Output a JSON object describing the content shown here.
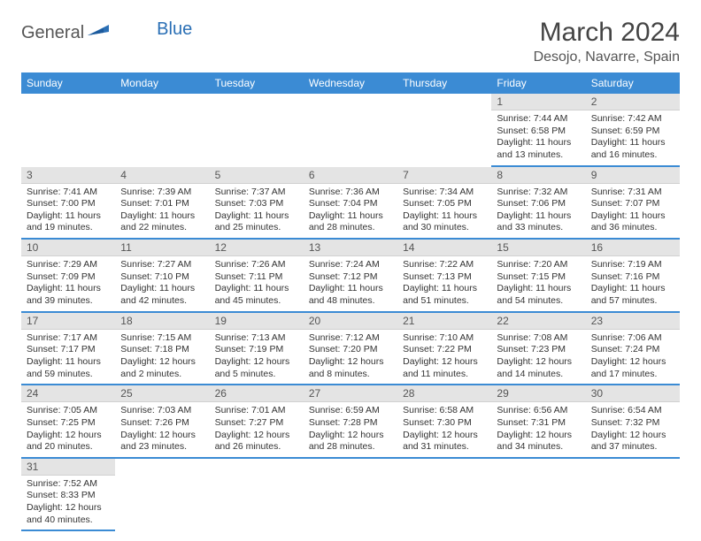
{
  "logo": {
    "general": "General",
    "blue": "Blue"
  },
  "title": "March 2024",
  "location": "Desojo, Navarre, Spain",
  "weekdays": [
    "Sunday",
    "Monday",
    "Tuesday",
    "Wednesday",
    "Thursday",
    "Friday",
    "Saturday"
  ],
  "colors": {
    "header_bg": "#3b8bd4",
    "daynum_bg": "#e4e4e4",
    "row_divider": "#3b8bd4"
  },
  "weeks": [
    [
      null,
      null,
      null,
      null,
      null,
      {
        "n": "1",
        "sunrise": "7:44 AM",
        "sunset": "6:58 PM",
        "daylight": "11 hours and 13 minutes."
      },
      {
        "n": "2",
        "sunrise": "7:42 AM",
        "sunset": "6:59 PM",
        "daylight": "11 hours and 16 minutes."
      }
    ],
    [
      {
        "n": "3",
        "sunrise": "7:41 AM",
        "sunset": "7:00 PM",
        "daylight": "11 hours and 19 minutes."
      },
      {
        "n": "4",
        "sunrise": "7:39 AM",
        "sunset": "7:01 PM",
        "daylight": "11 hours and 22 minutes."
      },
      {
        "n": "5",
        "sunrise": "7:37 AM",
        "sunset": "7:03 PM",
        "daylight": "11 hours and 25 minutes."
      },
      {
        "n": "6",
        "sunrise": "7:36 AM",
        "sunset": "7:04 PM",
        "daylight": "11 hours and 28 minutes."
      },
      {
        "n": "7",
        "sunrise": "7:34 AM",
        "sunset": "7:05 PM",
        "daylight": "11 hours and 30 minutes."
      },
      {
        "n": "8",
        "sunrise": "7:32 AM",
        "sunset": "7:06 PM",
        "daylight": "11 hours and 33 minutes."
      },
      {
        "n": "9",
        "sunrise": "7:31 AM",
        "sunset": "7:07 PM",
        "daylight": "11 hours and 36 minutes."
      }
    ],
    [
      {
        "n": "10",
        "sunrise": "7:29 AM",
        "sunset": "7:09 PM",
        "daylight": "11 hours and 39 minutes."
      },
      {
        "n": "11",
        "sunrise": "7:27 AM",
        "sunset": "7:10 PM",
        "daylight": "11 hours and 42 minutes."
      },
      {
        "n": "12",
        "sunrise": "7:26 AM",
        "sunset": "7:11 PM",
        "daylight": "11 hours and 45 minutes."
      },
      {
        "n": "13",
        "sunrise": "7:24 AM",
        "sunset": "7:12 PM",
        "daylight": "11 hours and 48 minutes."
      },
      {
        "n": "14",
        "sunrise": "7:22 AM",
        "sunset": "7:13 PM",
        "daylight": "11 hours and 51 minutes."
      },
      {
        "n": "15",
        "sunrise": "7:20 AM",
        "sunset": "7:15 PM",
        "daylight": "11 hours and 54 minutes."
      },
      {
        "n": "16",
        "sunrise": "7:19 AM",
        "sunset": "7:16 PM",
        "daylight": "11 hours and 57 minutes."
      }
    ],
    [
      {
        "n": "17",
        "sunrise": "7:17 AM",
        "sunset": "7:17 PM",
        "daylight": "11 hours and 59 minutes."
      },
      {
        "n": "18",
        "sunrise": "7:15 AM",
        "sunset": "7:18 PM",
        "daylight": "12 hours and 2 minutes."
      },
      {
        "n": "19",
        "sunrise": "7:13 AM",
        "sunset": "7:19 PM",
        "daylight": "12 hours and 5 minutes."
      },
      {
        "n": "20",
        "sunrise": "7:12 AM",
        "sunset": "7:20 PM",
        "daylight": "12 hours and 8 minutes."
      },
      {
        "n": "21",
        "sunrise": "7:10 AM",
        "sunset": "7:22 PM",
        "daylight": "12 hours and 11 minutes."
      },
      {
        "n": "22",
        "sunrise": "7:08 AM",
        "sunset": "7:23 PM",
        "daylight": "12 hours and 14 minutes."
      },
      {
        "n": "23",
        "sunrise": "7:06 AM",
        "sunset": "7:24 PM",
        "daylight": "12 hours and 17 minutes."
      }
    ],
    [
      {
        "n": "24",
        "sunrise": "7:05 AM",
        "sunset": "7:25 PM",
        "daylight": "12 hours and 20 minutes."
      },
      {
        "n": "25",
        "sunrise": "7:03 AM",
        "sunset": "7:26 PM",
        "daylight": "12 hours and 23 minutes."
      },
      {
        "n": "26",
        "sunrise": "7:01 AM",
        "sunset": "7:27 PM",
        "daylight": "12 hours and 26 minutes."
      },
      {
        "n": "27",
        "sunrise": "6:59 AM",
        "sunset": "7:28 PM",
        "daylight": "12 hours and 28 minutes."
      },
      {
        "n": "28",
        "sunrise": "6:58 AM",
        "sunset": "7:30 PM",
        "daylight": "12 hours and 31 minutes."
      },
      {
        "n": "29",
        "sunrise": "6:56 AM",
        "sunset": "7:31 PM",
        "daylight": "12 hours and 34 minutes."
      },
      {
        "n": "30",
        "sunrise": "6:54 AM",
        "sunset": "7:32 PM",
        "daylight": "12 hours and 37 minutes."
      }
    ],
    [
      {
        "n": "31",
        "sunrise": "7:52 AM",
        "sunset": "8:33 PM",
        "daylight": "12 hours and 40 minutes."
      },
      null,
      null,
      null,
      null,
      null,
      null
    ]
  ],
  "labels": {
    "sunrise": "Sunrise:",
    "sunset": "Sunset:",
    "daylight": "Daylight:"
  }
}
